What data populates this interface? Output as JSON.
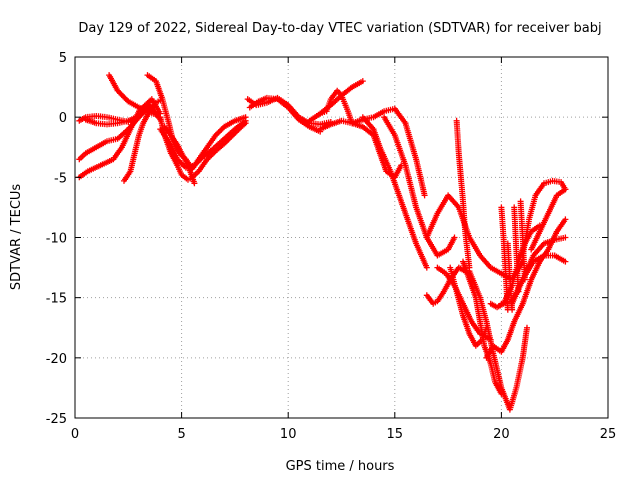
{
  "chart_data": {
    "type": "scatter",
    "title": "Day 129 of 2022, Sidereal Day-to-day VTEC variation (SDTVAR) for receiver babj",
    "xlabel": "GPS time / hours",
    "ylabel": "SDTVAR / TECUs",
    "xlim": [
      0,
      25
    ],
    "ylim": [
      -25,
      5
    ],
    "xticks": [
      "0",
      "5",
      "10",
      "15",
      "20",
      "25"
    ],
    "yticks": [
      "5",
      "0",
      "-5",
      "-10",
      "-15",
      "-20",
      "-25"
    ],
    "grid": true,
    "marker": "plus",
    "color": "#ff0000",
    "series": [
      {
        "x": [
          0.2,
          0.5,
          1.0,
          1.5,
          2.0,
          2.5,
          3.0,
          3.5,
          4.0
        ],
        "y": [
          -3.5,
          -3.0,
          -2.5,
          -2.0,
          -1.8,
          -1.0,
          0.0,
          1.0,
          -0.2
        ]
      },
      {
        "x": [
          0.2,
          0.6,
          1.2,
          1.8,
          2.2,
          2.6,
          3.0,
          3.6,
          4.0
        ],
        "y": [
          -5.0,
          -4.5,
          -4.0,
          -3.5,
          -2.5,
          -1.0,
          0.5,
          1.5,
          0.3
        ]
      },
      {
        "x": [
          0.2,
          0.5,
          1.0,
          1.5,
          2.0,
          2.5
        ],
        "y": [
          -0.3,
          0.0,
          0.1,
          0.0,
          -0.2,
          -0.4
        ]
      },
      {
        "x": [
          0.5,
          1.0,
          1.5,
          2.0,
          2.5,
          3.0,
          3.5
        ],
        "y": [
          -0.2,
          -0.5,
          -0.6,
          -0.5,
          -0.3,
          0.1,
          0.8
        ]
      },
      {
        "x": [
          1.6,
          2.0,
          2.5,
          3.0,
          3.5,
          3.8
        ],
        "y": [
          3.5,
          2.2,
          1.3,
          0.8,
          0.4,
          0.2
        ]
      },
      {
        "x": [
          2.3,
          2.6,
          2.8,
          3.0,
          3.2,
          3.5,
          3.8,
          4.0
        ],
        "y": [
          -5.3,
          -4.5,
          -3.0,
          -1.5,
          -0.5,
          0.5,
          1.2,
          1.4
        ]
      },
      {
        "x": [
          3.4,
          3.8,
          4.1,
          4.4,
          4.6,
          4.9,
          5.2,
          5.5,
          5.8,
          6.2,
          6.6,
          7.0,
          7.5,
          8.0
        ],
        "y": [
          3.5,
          3.0,
          1.5,
          -0.5,
          -2.0,
          -3.0,
          -3.5,
          -4.3,
          -3.5,
          -2.5,
          -1.5,
          -0.8,
          -0.3,
          0.0
        ]
      },
      {
        "x": [
          4.0,
          4.2,
          4.5,
          4.8,
          5.0,
          5.3,
          5.5,
          5.8,
          6.2,
          6.6,
          7.0,
          7.4,
          7.8,
          8.0
        ],
        "y": [
          0.0,
          -1.5,
          -3.0,
          -4.0,
          -4.8,
          -5.2,
          -5.0,
          -4.5,
          -3.5,
          -2.8,
          -2.2,
          -1.5,
          -0.8,
          -0.5
        ]
      },
      {
        "x": [
          4.0,
          4.4,
          4.8,
          5.2,
          5.6,
          6.0,
          6.5,
          7.0,
          7.5,
          8.0
        ],
        "y": [
          -1.0,
          -2.0,
          -3.5,
          -4.2,
          -4.0,
          -3.3,
          -2.6,
          -1.8,
          -1.0,
          -0.3
        ]
      },
      {
        "x": [
          4.2,
          4.5,
          4.8,
          5.0,
          5.3,
          5.6
        ],
        "y": [
          -0.8,
          -1.5,
          -2.3,
          -3.0,
          -4.0,
          -5.5
        ]
      },
      {
        "x": [
          8.1,
          8.5,
          9.0,
          9.5,
          10.0,
          10.5,
          11.0,
          11.5,
          12.0
        ],
        "y": [
          1.5,
          1.0,
          1.2,
          1.6,
          1.0,
          0.0,
          -0.5,
          -0.6,
          -0.4
        ]
      },
      {
        "x": [
          8.2,
          8.6,
          9.0,
          9.5,
          10.0,
          10.5,
          11.0,
          11.5
        ],
        "y": [
          0.8,
          1.3,
          1.6,
          1.5,
          0.8,
          -0.2,
          -0.8,
          -1.2
        ]
      },
      {
        "x": [
          11.0,
          11.5,
          12.0,
          12.5,
          13.0,
          13.5
        ],
        "y": [
          -0.3,
          0.3,
          1.0,
          1.8,
          2.5,
          3.0
        ]
      },
      {
        "x": [
          11.5,
          11.8,
          12.0,
          12.3,
          12.5,
          12.8,
          13.0
        ],
        "y": [
          0.3,
          0.5,
          1.5,
          2.2,
          1.8,
          0.5,
          -0.5
        ]
      },
      {
        "x": [
          11.5,
          12.0,
          12.5,
          13.0,
          13.5,
          14.0,
          14.5,
          15.0,
          15.5,
          16.0,
          16.4
        ],
        "y": [
          -1.0,
          -0.6,
          -0.3,
          -0.5,
          -0.2,
          0.0,
          0.5,
          0.7,
          -0.5,
          -3.5,
          -6.5
        ]
      },
      {
        "x": [
          13.0,
          13.5,
          14.0,
          14.3,
          14.6,
          15.0,
          15.3
        ],
        "y": [
          -0.5,
          -0.8,
          -1.5,
          -3.0,
          -4.5,
          -5.0,
          -4.0
        ]
      },
      {
        "x": [
          13.5,
          14.0,
          14.3,
          14.8,
          15.2,
          15.6,
          16.0,
          16.5
        ],
        "y": [
          0.0,
          -1.0,
          -2.5,
          -4.5,
          -6.5,
          -8.5,
          -10.5,
          -12.5
        ]
      },
      {
        "x": [
          14.5,
          15.0,
          15.5,
          16.0,
          16.5,
          17.0,
          17.5,
          17.8
        ],
        "y": [
          0.0,
          -1.5,
          -4.0,
          -7.5,
          -10.0,
          -11.5,
          -11.0,
          -10.0
        ]
      },
      {
        "x": [
          16.5,
          17.0,
          17.5,
          18.0,
          18.5,
          19.0,
          19.5,
          20.0,
          20.5,
          21.0
        ],
        "y": [
          -10.0,
          -8.0,
          -6.5,
          -7.5,
          -10.0,
          -11.5,
          -12.5,
          -13.0,
          -13.5,
          -12.0
        ]
      },
      {
        "x": [
          16.5,
          16.8,
          17.0,
          17.3,
          17.6,
          18.0,
          18.3
        ],
        "y": [
          -14.8,
          -15.5,
          -15.3,
          -14.5,
          -13.5,
          -12.5,
          -12.8
        ]
      },
      {
        "x": [
          17.0,
          17.4,
          17.8,
          18.2,
          18.6,
          19.0,
          19.5
        ],
        "y": [
          -12.5,
          -13.0,
          -14.0,
          -15.5,
          -17.0,
          -18.0,
          -18.5
        ]
      },
      {
        "x": [
          17.6,
          17.9,
          18.2,
          18.5,
          18.8,
          19.1,
          19.3
        ],
        "y": [
          -12.5,
          -14.5,
          -16.5,
          -18.0,
          -19.0,
          -18.5,
          -17.5
        ]
      },
      {
        "x": [
          17.9,
          18.0,
          18.1,
          18.2,
          18.3,
          18.5
        ],
        "y": [
          -0.3,
          -3.0,
          -5.0,
          -7.0,
          -9.5,
          -12.5
        ]
      },
      {
        "x": [
          18.2,
          18.5,
          18.8,
          19.0,
          19.2,
          19.5,
          19.7,
          20.0
        ],
        "y": [
          -12.0,
          -13.5,
          -15.0,
          -17.0,
          -19.0,
          -20.5,
          -22.0,
          -23.0
        ]
      },
      {
        "x": [
          18.5,
          19.0,
          19.3,
          19.6,
          20.0,
          20.4,
          20.7,
          21.0,
          21.2
        ],
        "y": [
          -12.8,
          -15.0,
          -17.0,
          -19.5,
          -22.5,
          -24.3,
          -22.5,
          -20.0,
          -17.5
        ]
      },
      {
        "x": [
          19.3,
          19.6,
          20.0,
          20.3,
          20.6,
          21.0,
          21.4,
          21.8,
          22.2,
          22.6,
          23.0
        ],
        "y": [
          -20.0,
          -19.0,
          -19.5,
          -18.5,
          -17.0,
          -15.5,
          -13.5,
          -12.0,
          -11.0,
          -9.5,
          -8.5
        ]
      },
      {
        "x": [
          19.5,
          19.8,
          20.1,
          20.5,
          20.8,
          21.1,
          21.4,
          21.8
        ],
        "y": [
          -15.5,
          -15.8,
          -15.5,
          -14.0,
          -12.0,
          -10.5,
          -9.5,
          -9.0
        ]
      },
      {
        "x": [
          20.0,
          20.5,
          21.0,
          21.5,
          22.0,
          22.5,
          23.0
        ],
        "y": [
          -15.5,
          -15.3,
          -13.5,
          -12.0,
          -11.5,
          -11.5,
          -12.0
        ]
      },
      {
        "x": [
          20.5,
          21.0,
          21.5,
          22.0,
          22.5,
          23.0
        ],
        "y": [
          -15.5,
          -13.5,
          -11.5,
          -10.5,
          -10.2,
          -10.0
        ]
      },
      {
        "x": [
          21.0,
          21.3,
          21.6,
          22.0,
          22.4,
          22.8,
          23.0
        ],
        "y": [
          -11.5,
          -8.5,
          -6.5,
          -5.5,
          -5.3,
          -5.4,
          -6.0
        ]
      },
      {
        "x": [
          21.4,
          21.8,
          22.2,
          22.6,
          23.0
        ],
        "y": [
          -11.0,
          -9.5,
          -8.0,
          -6.5,
          -6.0
        ]
      },
      {
        "x": [
          20.0,
          20.1,
          20.2,
          20.3
        ],
        "y": [
          -7.5,
          -10.0,
          -13.0,
          -16.0
        ]
      },
      {
        "x": [
          20.3,
          20.4,
          20.5
        ],
        "y": [
          -10.5,
          -13.5,
          -16.0
        ]
      },
      {
        "x": [
          20.6,
          20.7,
          20.8
        ],
        "y": [
          -7.5,
          -11.0,
          -14.5
        ]
      },
      {
        "x": [
          20.9,
          21.0,
          21.1
        ],
        "y": [
          -7.0,
          -10.0,
          -13.5
        ]
      }
    ]
  }
}
